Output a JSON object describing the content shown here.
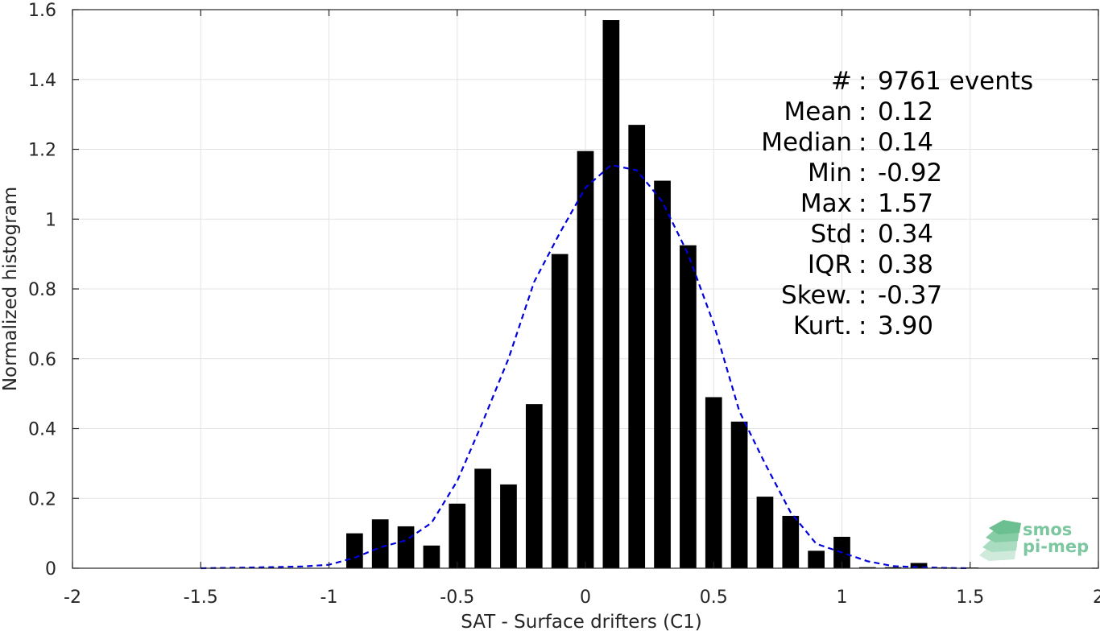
{
  "chart_data": {
    "type": "bar",
    "xlabel": "SAT - Surface drifters (C1)",
    "ylabel": "Normalized histogram",
    "xlim": [
      -2,
      2
    ],
    "ylim": [
      0,
      1.6
    ],
    "xticks": [
      -2,
      -1.5,
      -1,
      -0.5,
      0,
      0.5,
      1,
      1.5,
      2
    ],
    "xtick_labels": [
      "-2",
      "-1.5",
      "-1",
      "-0.5",
      "0",
      "0.5",
      "1",
      "1.5",
      "2"
    ],
    "yticks": [
      0,
      0.2,
      0.4,
      0.6,
      0.8,
      1,
      1.2,
      1.4,
      1.6
    ],
    "ytick_labels": [
      "0",
      "0.2",
      "0.4",
      "0.6",
      "0.8",
      "1",
      "1.2",
      "1.4",
      "1.6"
    ],
    "grid": true,
    "bar_color": "#000000",
    "bin_width": 0.1,
    "bars": [
      {
        "x": -0.9,
        "y": 0.1
      },
      {
        "x": -0.8,
        "y": 0.14
      },
      {
        "x": -0.7,
        "y": 0.12
      },
      {
        "x": -0.6,
        "y": 0.065
      },
      {
        "x": -0.5,
        "y": 0.185
      },
      {
        "x": -0.4,
        "y": 0.285
      },
      {
        "x": -0.3,
        "y": 0.24
      },
      {
        "x": -0.2,
        "y": 0.47
      },
      {
        "x": -0.1,
        "y": 0.9
      },
      {
        "x": 0.0,
        "y": 1.195
      },
      {
        "x": 0.1,
        "y": 1.57
      },
      {
        "x": 0.2,
        "y": 1.27
      },
      {
        "x": 0.3,
        "y": 1.11
      },
      {
        "x": 0.4,
        "y": 0.925
      },
      {
        "x": 0.5,
        "y": 0.49
      },
      {
        "x": 0.6,
        "y": 0.42
      },
      {
        "x": 0.7,
        "y": 0.205
      },
      {
        "x": 0.8,
        "y": 0.15
      },
      {
        "x": 0.9,
        "y": 0.05
      },
      {
        "x": 1.0,
        "y": 0.09
      },
      {
        "x": 1.1,
        "y": 0.003
      },
      {
        "x": 1.2,
        "y": 0.003
      },
      {
        "x": 1.3,
        "y": 0.015
      },
      {
        "x": 1.4,
        "y": 0.002
      },
      {
        "x": 1.5,
        "y": 0.002
      }
    ],
    "fit_curve": {
      "style": "dashed",
      "color": "#0000dd",
      "x": [
        -1.5,
        -1.3,
        -1.1,
        -1.0,
        -0.9,
        -0.8,
        -0.7,
        -0.6,
        -0.5,
        -0.4,
        -0.3,
        -0.2,
        -0.1,
        0.0,
        0.1,
        0.2,
        0.3,
        0.4,
        0.5,
        0.6,
        0.7,
        0.8,
        0.9,
        1.0,
        1.1,
        1.2,
        1.3,
        1.4,
        1.5
      ],
      "y": [
        0.0,
        0.002,
        0.005,
        0.01,
        0.03,
        0.06,
        0.08,
        0.13,
        0.25,
        0.42,
        0.6,
        0.82,
        0.96,
        1.09,
        1.155,
        1.14,
        1.05,
        0.9,
        0.7,
        0.45,
        0.3,
        0.16,
        0.07,
        0.045,
        0.02,
        0.006,
        0.003,
        0.001,
        0.0
      ]
    },
    "annotations": [
      {
        "label": "#",
        "sep": ":",
        "value": "9761 events"
      },
      {
        "label": "Mean",
        "sep": ":",
        "value": "0.12"
      },
      {
        "label": "Median",
        "sep": ":",
        "value": "0.14"
      },
      {
        "label": "Min",
        "sep": ":",
        "value": "-0.92"
      },
      {
        "label": "Max",
        "sep": ":",
        "value": "1.57"
      },
      {
        "label": "Std",
        "sep": ":",
        "value": "0.34"
      },
      {
        "label": "IQR",
        "sep": ":",
        "value": "0.38"
      },
      {
        "label": "Skew.",
        "sep": ":",
        "value": "-0.37"
      },
      {
        "label": "Kurt.",
        "sep": ":",
        "value": "3.90"
      }
    ]
  },
  "logo": {
    "line1": "smos",
    "line2": "pi-mep",
    "color": "#7cc7a0"
  }
}
